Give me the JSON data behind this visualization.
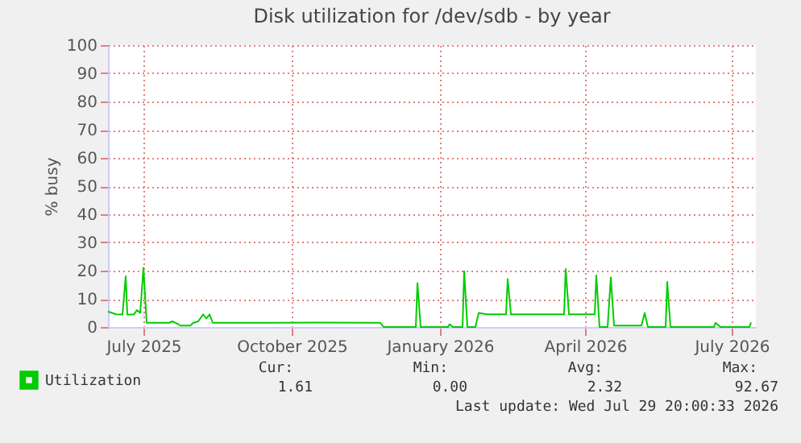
{
  "chart_data": {
    "type": "line",
    "title": "Disk utilization for /dev/sdb - by year",
    "ylabel": "% busy",
    "x": [
      "2025-06-24",
      "2025-06-29",
      "2025-07-03",
      "2025-07-05",
      "2025-07-06",
      "2025-07-10",
      "2025-07-12",
      "2025-07-14",
      "2025-07-16",
      "2025-07-18",
      "2025-08-01",
      "2025-08-03",
      "2025-08-06",
      "2025-08-08",
      "2025-08-14",
      "2025-08-16",
      "2025-08-19",
      "2025-08-22",
      "2025-08-24",
      "2025-08-26",
      "2025-08-28",
      "2025-10-02",
      "2025-11-01",
      "2025-12-10",
      "2025-12-12",
      "2026-01-01",
      "2026-01-02",
      "2026-01-04",
      "2026-01-21",
      "2026-01-22",
      "2026-01-24",
      "2026-01-30",
      "2026-01-31",
      "2026-02-02",
      "2026-02-07",
      "2026-02-09",
      "2026-02-14",
      "2026-02-26",
      "2026-02-27",
      "2026-03-01",
      "2026-03-21",
      "2026-04-03",
      "2026-04-04",
      "2026-04-06",
      "2026-04-22",
      "2026-04-23",
      "2026-04-25",
      "2026-04-30",
      "2026-05-02",
      "2026-05-04",
      "2026-05-21",
      "2026-05-23",
      "2026-05-25",
      "2026-06-05",
      "2026-06-06",
      "2026-06-08",
      "2026-07-05",
      "2026-07-06",
      "2026-07-09",
      "2026-07-27",
      "2026-07-28"
    ],
    "series": [
      {
        "name": "Utilization",
        "color": "#00cc00",
        "values": [
          5.5,
          4.5,
          4.4,
          18,
          4.4,
          4.4,
          6,
          5,
          21,
          1.5,
          1.5,
          2,
          1.2,
          0.5,
          0.5,
          1.5,
          2,
          4.5,
          3,
          4.5,
          1.5,
          1.5,
          1.6,
          1.5,
          0,
          0,
          15.6,
          0,
          0,
          1,
          0,
          0,
          19.8,
          0,
          0,
          5,
          4.5,
          4.5,
          17,
          4.5,
          4.5,
          4.5,
          20.6,
          4.5,
          4.5,
          18.3,
          0,
          0,
          17.6,
          0.5,
          0.5,
          5,
          0,
          0,
          16,
          0,
          0,
          1.5,
          0,
          0,
          1.6
        ]
      }
    ],
    "xlim": [
      "2025-06-24",
      "2026-07-31"
    ],
    "xticks": [
      {
        "value": "2025-07-16",
        "label": "July 2025"
      },
      {
        "value": "2025-10-16",
        "label": "October 2025"
      },
      {
        "value": "2026-01-16",
        "label": "January 2026"
      },
      {
        "value": "2026-04-16",
        "label": "April 2026"
      },
      {
        "value": "2026-07-16",
        "label": "July 2026"
      }
    ],
    "ylim": [
      0,
      100
    ],
    "yticks": [
      0,
      10,
      20,
      30,
      40,
      50,
      60,
      70,
      80,
      90,
      100
    ],
    "grid": true,
    "legend": "bottom left",
    "marker": "none",
    "line_style": "solid",
    "annotations": [
      "Cur:",
      "Min:",
      "Avg:",
      "Max:",
      "1.61",
      "0.00",
      "2.32",
      "92.67",
      "Last update: Wed Jul 29 20:00:33 2026"
    ]
  }
}
